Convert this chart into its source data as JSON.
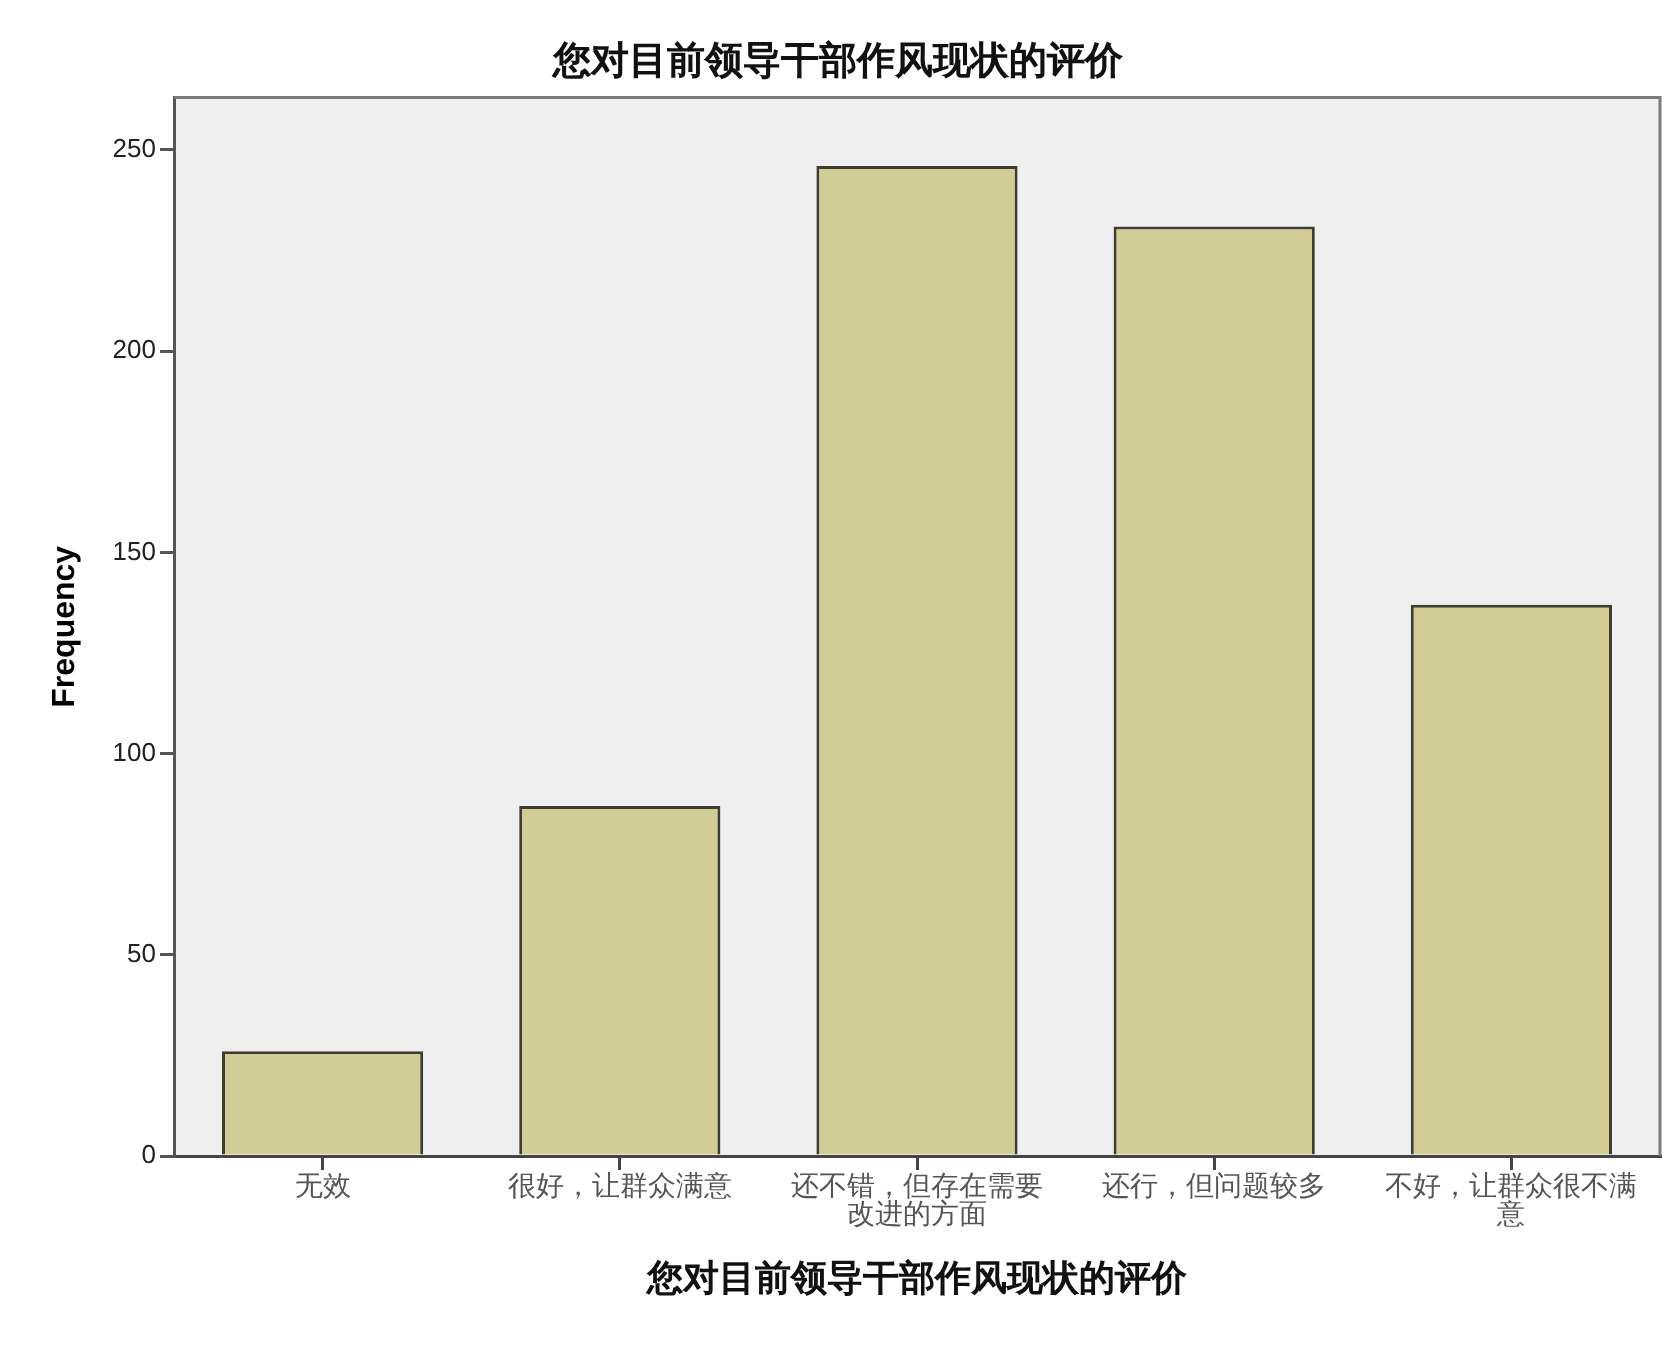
{
  "chart_data": {
    "type": "bar",
    "title": "您对目前领导干部作风现状的评价",
    "xlabel": "您对目前领导干部作风现状的评价",
    "ylabel": "Frequency",
    "categories": [
      "无效",
      "很好，让群众满意",
      "还不错，但存在需要改进的方面",
      "还行，但问题较多",
      "不好，让群众很不满意"
    ],
    "values": [
      26,
      87,
      246,
      231,
      137
    ],
    "color": "#d2cd96",
    "ylim": [
      0,
      263
    ],
    "yticks": [
      0,
      50,
      100,
      150,
      200,
      250
    ],
    "grid": false,
    "legend": false
  }
}
